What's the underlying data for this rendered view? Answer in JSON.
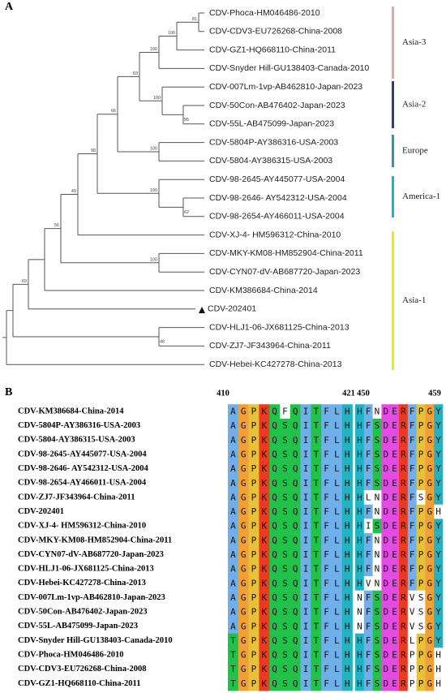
{
  "panel_a": {
    "label": "A",
    "leaves": [
      "CDV-Phoca-HM046486-2010",
      "CDV-CDV3-EU726268-China-2008",
      "CDV-GZ1-HQ668110-China-2011",
      "CDV-Snyder Hill-GU138403-Canada-2010",
      "CDV-007Lm-1vp-AB462810-Japan-2023",
      "CDV-50Con-AB476402-Japan-2023",
      "CDV-55L-AB475099-Japan-2023",
      "CDV-5804P-AY386316-USA-2003",
      "CDV-5804-AY386315-USA-2003",
      "CDV-98-2645-AY445077-USA-2004",
      "CDV-98-2646- AY542312-USA-2004",
      "CDV-98-2654-AY466011-USA-2004",
      "CDV-XJ-4- HM596312-China-2010",
      "CDV-MKY-KM08-HM852904-China-2011",
      "CDV-CYN07-dV-AB687720-Japan-2023",
      "CDV-KM386684-China-2014",
      "CDV-202401",
      "CDV-HLJ1-06-JX681125-China-2013",
      "CDV-ZJ7-JF343964-China-2011",
      "CDV-Hebei-KC427278-China-2013"
    ],
    "bootstrap": [
      81,
      100,
      100,
      83,
      95,
      100,
      66,
      100,
      100,
      62,
      98,
      49,
      100,
      56,
      69,
      48
    ],
    "clades": [
      "Asia-3",
      "Asia-2",
      "Europe",
      "America-1",
      "Asia-1"
    ]
  },
  "panel_b": {
    "label": "B",
    "positions": [
      410,
      421,
      450,
      459
    ],
    "rows": [
      {
        "name": "CDV-KM386684-China-2014",
        "left": "AGPKQFQITFLH",
        "right": "HFNDERFPGY"
      },
      {
        "name": "CDV-5804P-AY386316-USA-2003",
        "left": "AGPKQSQITFLH",
        "right": "HFSDERFPGY"
      },
      {
        "name": "CDV-5804-AY386315-USA-2003",
        "left": "AGPKQSQITFLH",
        "right": "HFSDERFPGY"
      },
      {
        "name": "CDV-98-2645-AY445077-USA-2004",
        "left": "AGPKQSQITFLH",
        "right": "HFSDERFPGY"
      },
      {
        "name": "CDV-98-2646- AY542312-USA-2004",
        "left": "AGPKQSQITFLH",
        "right": "HFSDERFPGY"
      },
      {
        "name": "CDV-98-2654-AY466011-USA-2004",
        "left": "AGPKQSQITFLH",
        "right": "HFSDERFPGY"
      },
      {
        "name": "CDV-ZJ7-JF343964-China-2011",
        "left": "AGPKQSQITFLH",
        "right": "HLNDERFSGY"
      },
      {
        "name": "CDV-202401",
        "left": "AGPKQSQITFLH",
        "right": "HFNDERFPGH"
      },
      {
        "name": "CDV-XJ-4- HM596312-China-2010",
        "left": "AGPKQSQITFLH",
        "right": "HISDERFPGY"
      },
      {
        "name": "CDV-MKY-KM08-HM852904-China-2011",
        "left": "AGPKQSQITFLH",
        "right": "HFNDERFPGY"
      },
      {
        "name": "CDV-CYN07-dV-AB687720-Japan-2023",
        "left": "AGPKQSQITFLH",
        "right": "HFNDERFPGY"
      },
      {
        "name": "CDV-HLJ1-06-JX681125-China-2013",
        "left": "AGPKQSQITFLH",
        "right": "HFNDERFPGY"
      },
      {
        "name": "CDV-Hebei-KC427278-China-2013",
        "left": "AGPKQSQITFLH",
        "right": "HVNDERFPGY"
      },
      {
        "name": "CDV-007Lm-1vp-AB462810-Japan-2023",
        "left": "AGPKQSQITFLH",
        "right": "NFSDERVSGY"
      },
      {
        "name": "CDV-50Con-AB476402-Japan-2023",
        "left": "AGPKQSQITFLH",
        "right": "NFSDERVSGY"
      },
      {
        "name": "CDV-55L-AB475099-Japan-2023",
        "left": "AGPKQSQITFLH",
        "right": "NFSDERVSGY"
      },
      {
        "name": "CDV-Snyder Hill-GU138403-Canada-2010",
        "left": "TGPKQSQITFLH",
        "right": "HFSDERLPGY"
      },
      {
        "name": "CDV-Phoca-HM046486-2010",
        "left": "TGPKQSQITFLH",
        "right": "HFSDERPPGH"
      },
      {
        "name": "CDV-CDV3-EU726268-China-2008",
        "left": "TGPKQSQITFLH",
        "right": "HFSDERPPGH"
      },
      {
        "name": "CDV-GZ1-HQ668110-China-2011",
        "left": "TGPKQSQITFLH",
        "right": "HFSDERPPGH"
      }
    ]
  }
}
